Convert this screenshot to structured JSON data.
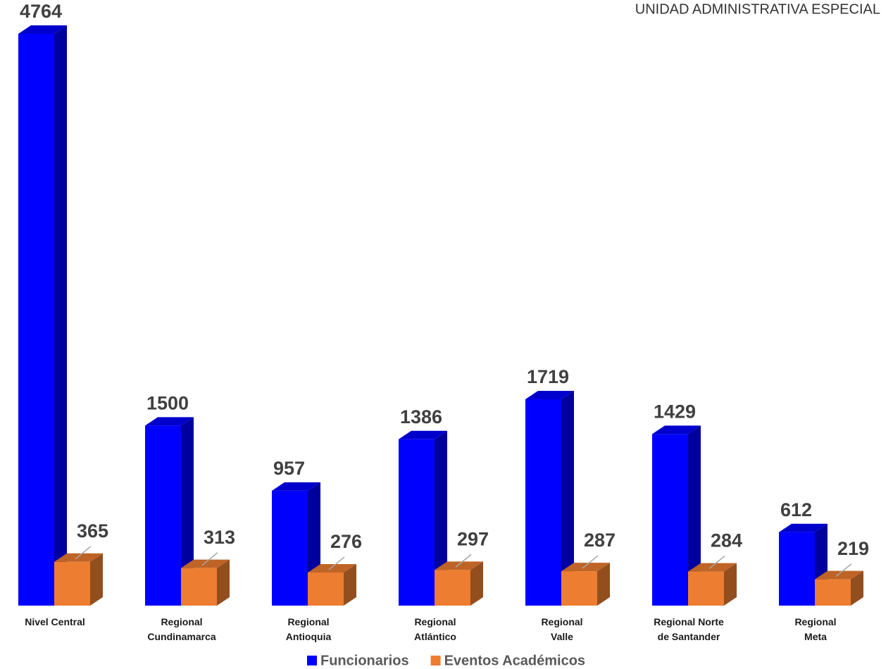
{
  "header": "UNIDAD ADMINISTRATIVA ESPECIAL",
  "chart_data": {
    "type": "bar3d",
    "categories": [
      "Nivel Central",
      "Regional\nCundinamarca",
      "Regional\nAntioquia",
      "Regional\nAtlántico",
      "Regional\nValle",
      "Regional Norte\nde Santander",
      "Regional\nMeta"
    ],
    "series": [
      {
        "name": "Funcionarios",
        "color": "#0000ff",
        "values": [
          4764,
          1500,
          957,
          1386,
          1719,
          1429,
          612
        ]
      },
      {
        "name": "Eventos Académicos",
        "color": "#ed7d31",
        "values": [
          365,
          313,
          276,
          297,
          287,
          284,
          219
        ]
      }
    ]
  }
}
